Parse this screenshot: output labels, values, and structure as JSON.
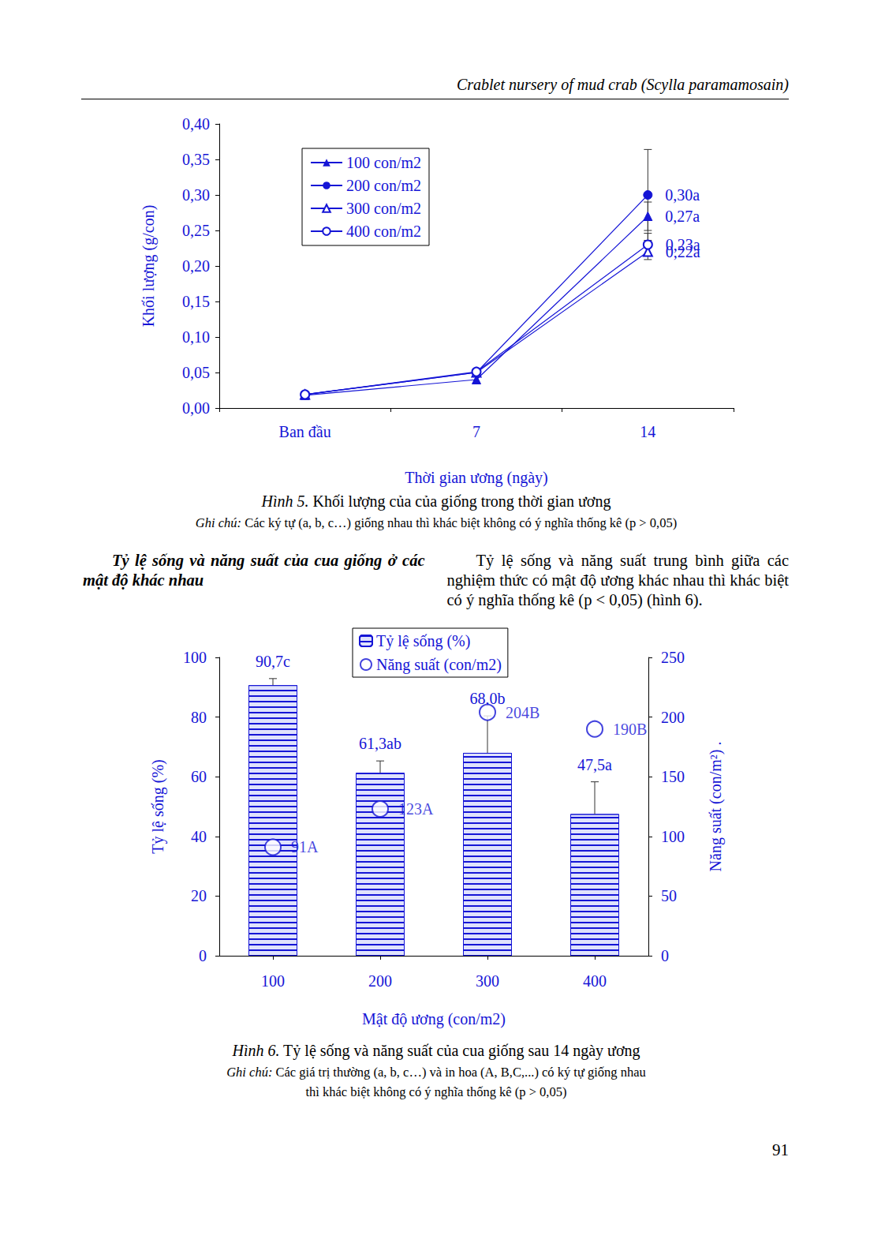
{
  "header": "Crablet nursery of mud crab (Scylla paramamosain)",
  "chart_data": [
    {
      "type": "line",
      "categories": [
        "Ban đầu",
        "7",
        "14"
      ],
      "x_label": "Thời gian ương (ngày)",
      "y_label": "Khối lượng (g/con)",
      "ylim": [
        0,
        0.4
      ],
      "yticks": [
        {
          "value": 0,
          "label": "0,00"
        },
        {
          "value": 0.05,
          "label": "0,05"
        },
        {
          "value": 0.1,
          "label": "0,10"
        },
        {
          "value": 0.15,
          "label": "0,15"
        },
        {
          "value": 0.2,
          "label": "0,20"
        },
        {
          "value": 0.25,
          "label": "0,25"
        },
        {
          "value": 0.3,
          "label": "0,30"
        },
        {
          "value": 0.35,
          "label": "0,35"
        },
        {
          "value": 0.4,
          "label": "0,40"
        }
      ],
      "grid": false,
      "legend": "upper left",
      "data_labels": true,
      "series": [
        {
          "name": "100 con/m2",
          "color": "#1515d6",
          "marker": "triangle",
          "values": [
            0.018,
            0.04,
            0.27
          ],
          "errors": [
            0,
            0,
            0.02
          ],
          "value_labels": [
            null,
            null,
            "0,27a"
          ]
        },
        {
          "name": "200 con/m2",
          "color": "#1515d6",
          "marker": "circle",
          "values": [
            0.019,
            0.05,
            0.3
          ],
          "errors": [
            0,
            0,
            0.064
          ],
          "value_labels": [
            null,
            null,
            "0,30a"
          ]
        },
        {
          "name": "300 con/m2",
          "color": "#1515d6",
          "marker": "open_triangle",
          "values": [
            0.019,
            0.05,
            0.22
          ],
          "errors": [
            0,
            0,
            0.011
          ],
          "value_labels": [
            null,
            null,
            "0,22a"
          ]
        },
        {
          "name": "400 con/m2",
          "color": "#1515d6",
          "marker": "open_circle",
          "values": [
            0.019,
            0.051,
            0.23
          ],
          "errors": [
            0,
            0,
            0.016
          ],
          "value_labels": [
            null,
            null,
            "0,23a"
          ]
        }
      ]
    },
    {
      "type": "bar",
      "categories": [
        "100",
        "200",
        "300",
        "400"
      ],
      "x_label": "Mật độ ương (con/m2)",
      "y_label": "Tỷ lệ sống (%)",
      "y2_label": "Năng suất (con/m²) .",
      "ylim": [
        0,
        100
      ],
      "yticks": [
        0,
        20,
        40,
        60,
        80,
        100
      ],
      "y2lim": [
        0,
        250
      ],
      "y2ticks": [
        0,
        50,
        100,
        150,
        200,
        250
      ],
      "grid": false,
      "legend": "upper center",
      "data_labels": true,
      "series": [
        {
          "name": "Tỷ lệ sống (%)",
          "type": "bar",
          "color": "#1515d6",
          "values": [
            90.7,
            61.3,
            68.0,
            47.5
          ],
          "errors": [
            2.2,
            4.0,
            12.4,
            10.8
          ],
          "value_labels": [
            "90,7c",
            "61,3ab",
            "68,0b",
            "47,5a"
          ]
        },
        {
          "name": "Năng suất (con/m2)",
          "type": "scatter",
          "axis": "y2",
          "marker": "open_circle",
          "color": "#1515d6",
          "values": [
            91,
            123,
            204,
            190
          ],
          "value_labels": [
            "91A",
            "123A",
            "204B",
            "190B"
          ]
        }
      ]
    }
  ],
  "captions": [
    {
      "label": "Hình 5.",
      "text": "Khối lượng của của giống trong thời gian ương",
      "note_label": "Ghi chú:",
      "note": [
        "Các ký tự (a, b, c…) giống nhau thì khác biệt không có ý nghĩa thống kê (p > 0,05)"
      ]
    },
    {
      "label": "Hình 6.",
      "text": "Tỷ lệ sống và năng suất của cua giống sau 14 ngày ương",
      "note_label": "Ghi chú:",
      "note": [
        "Các giá trị thường (a, b, c…) và in hoa (A, B,C,...) có ký tự giống nhau",
        "thì khác biệt không có ý nghĩa thống kê (p > 0,05)"
      ]
    }
  ],
  "section": {
    "heading": "Tỷ lệ sống và năng suất của cua giống ở các mật độ khác nhau",
    "body": "Tỷ lệ sống và năng suất trung bình giữa các nghiệm thức có mật độ ương khác nhau thì khác biệt có ý nghĩa thống kê (p < 0,05) (hình 6)."
  },
  "page_number": "91"
}
